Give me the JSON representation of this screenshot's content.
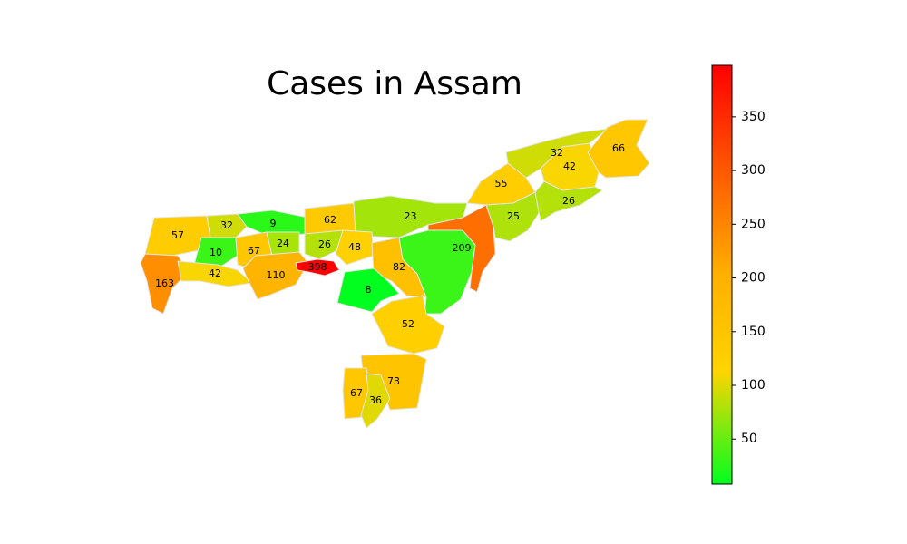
{
  "title": "Cases in Assam",
  "colorbar": {
    "min": 8,
    "max": 398,
    "ticks": [
      50,
      100,
      150,
      200,
      250,
      300,
      350
    ],
    "colors": [
      "#00ff1e",
      "#ffd400",
      "#ff0000"
    ]
  },
  "districts": [
    {
      "id": "d-57",
      "value": 57
    },
    {
      "id": "d-32w",
      "value": 32
    },
    {
      "id": "d-9",
      "value": 9
    },
    {
      "id": "d-62",
      "value": 62
    },
    {
      "id": "d-23",
      "value": 23
    },
    {
      "id": "d-10",
      "value": 10
    },
    {
      "id": "d-67w",
      "value": 67
    },
    {
      "id": "d-24",
      "value": 24
    },
    {
      "id": "d-26c",
      "value": 26
    },
    {
      "id": "d-48",
      "value": 48
    },
    {
      "id": "d-163",
      "value": 163
    },
    {
      "id": "d-42w",
      "value": 42
    },
    {
      "id": "d-110",
      "value": 110
    },
    {
      "id": "d-398",
      "value": 398
    },
    {
      "id": "d-82",
      "value": 82
    },
    {
      "id": "d-8",
      "value": 8
    },
    {
      "id": "d-209",
      "value": 209
    },
    {
      "id": "d-52",
      "value": 52
    },
    {
      "id": "d-73",
      "value": 73
    },
    {
      "id": "d-67s",
      "value": 67
    },
    {
      "id": "d-36",
      "value": 36
    },
    {
      "id": "d-55",
      "value": 55
    },
    {
      "id": "d-32e",
      "value": 32
    },
    {
      "id": "d-42e",
      "value": 42
    },
    {
      "id": "d-66",
      "value": 66
    },
    {
      "id": "d-25",
      "value": 25
    },
    {
      "id": "d-26e",
      "value": 26
    },
    {
      "id": "d-karbi",
      "value": 10
    }
  ]
}
